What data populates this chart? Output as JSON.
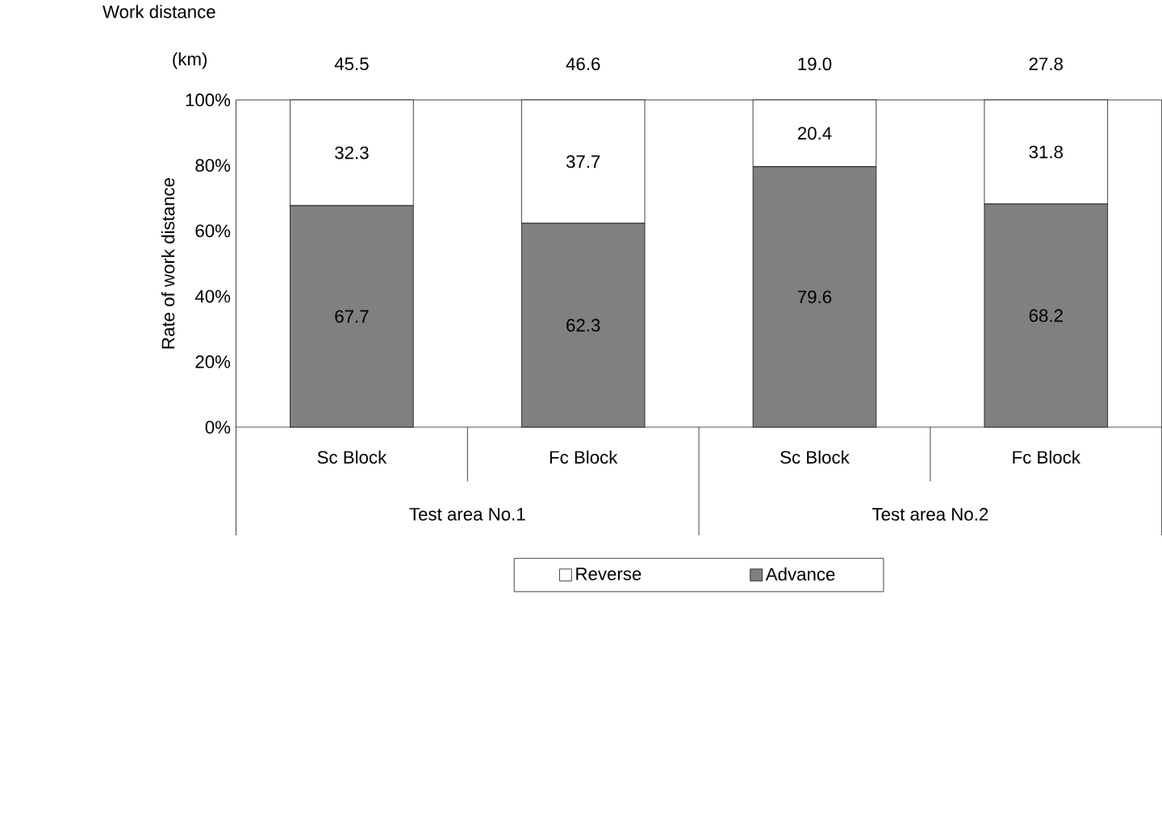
{
  "chart_data": {
    "type": "bar",
    "stacked": true,
    "ylabel": "Rate of work distance",
    "categories": [
      "Sc Block",
      "Fc Block",
      "Sc Block",
      "Fc Block"
    ],
    "series": [
      {
        "name": "Advance",
        "color": "#808080",
        "values": [
          67.7,
          62.3,
          79.6,
          68.2
        ]
      },
      {
        "name": "Reverse",
        "color": "#ffffff",
        "values": [
          32.3,
          37.7,
          20.4,
          31.8
        ]
      }
    ],
    "ylim": [
      0,
      100
    ],
    "yticks": [
      {
        "value": 0,
        "label": "0%"
      },
      {
        "value": 20,
        "label": "20%"
      },
      {
        "value": 40,
        "label": "40%"
      },
      {
        "value": 60,
        "label": "60%"
      },
      {
        "value": 80,
        "label": "80%"
      },
      {
        "value": 100,
        "label": "100%"
      }
    ],
    "data_labels": true,
    "legend": "bottom",
    "grid": false,
    "annotations": [
      "Work distance",
      "(km)",
      "45.5",
      "46.6",
      "19.0",
      "27.8",
      "Test area No.1",
      "Test area No.2"
    ]
  }
}
